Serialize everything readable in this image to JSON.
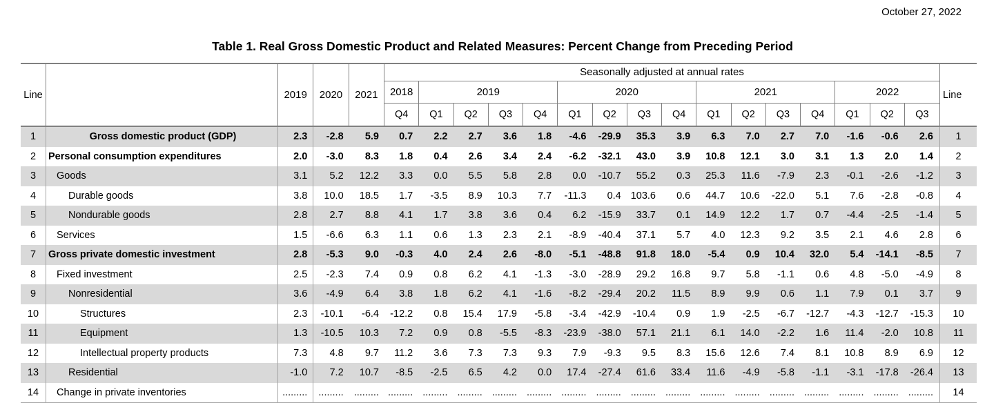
{
  "page": {
    "date": "October 27, 2022",
    "title": "Table 1. Real Gross Domestic Product and Related Measures: Percent Change from Preceding Period"
  },
  "table": {
    "line_header_left": "Line",
    "line_header_right": "Line",
    "seasonal_note": "Seasonally adjusted at annual rates",
    "annual_years": [
      "2019",
      "2020",
      "2021"
    ],
    "quarter_groups": [
      {
        "year": "2018",
        "quarters": [
          "Q4"
        ]
      },
      {
        "year": "2019",
        "quarters": [
          "Q1",
          "Q2",
          "Q3",
          "Q4"
        ]
      },
      {
        "year": "2020",
        "quarters": [
          "Q1",
          "Q2",
          "Q3",
          "Q4"
        ]
      },
      {
        "year": "2021",
        "quarters": [
          "Q1",
          "Q2",
          "Q3",
          "Q4"
        ]
      },
      {
        "year": "2022",
        "quarters": [
          "Q1",
          "Q2",
          "Q3"
        ]
      }
    ],
    "rows": [
      {
        "line": "1",
        "label": "Gross domestic product (GDP)",
        "bold": true,
        "center": true,
        "indent": 0,
        "annual": [
          "2.3",
          "-2.8",
          "5.9"
        ],
        "quarterly": [
          "0.7",
          "2.2",
          "2.7",
          "3.6",
          "1.8",
          "-4.6",
          "-29.9",
          "35.3",
          "3.9",
          "6.3",
          "7.0",
          "2.7",
          "7.0",
          "-1.6",
          "-0.6",
          "2.6"
        ]
      },
      {
        "line": "2",
        "label": "Personal consumption expenditures",
        "bold": true,
        "center": false,
        "indent": 0,
        "annual": [
          "2.0",
          "-3.0",
          "8.3"
        ],
        "quarterly": [
          "1.8",
          "0.4",
          "2.6",
          "3.4",
          "2.4",
          "-6.2",
          "-32.1",
          "43.0",
          "3.9",
          "10.8",
          "12.1",
          "3.0",
          "3.1",
          "1.3",
          "2.0",
          "1.4"
        ]
      },
      {
        "line": "3",
        "label": "Goods",
        "bold": false,
        "center": false,
        "indent": 1,
        "annual": [
          "3.1",
          "5.2",
          "12.2"
        ],
        "quarterly": [
          "3.3",
          "0.0",
          "5.5",
          "5.8",
          "2.8",
          "0.0",
          "-10.7",
          "55.2",
          "0.3",
          "25.3",
          "11.6",
          "-7.9",
          "2.3",
          "-0.1",
          "-2.6",
          "-1.2"
        ]
      },
      {
        "line": "4",
        "label": "Durable goods",
        "bold": false,
        "center": false,
        "indent": 2,
        "annual": [
          "3.8",
          "10.0",
          "18.5"
        ],
        "quarterly": [
          "1.7",
          "-3.5",
          "8.9",
          "10.3",
          "7.7",
          "-11.3",
          "0.4",
          "103.6",
          "0.6",
          "44.7",
          "10.6",
          "-22.0",
          "5.1",
          "7.6",
          "-2.8",
          "-0.8"
        ]
      },
      {
        "line": "5",
        "label": "Nondurable goods",
        "bold": false,
        "center": false,
        "indent": 2,
        "annual": [
          "2.8",
          "2.7",
          "8.8"
        ],
        "quarterly": [
          "4.1",
          "1.7",
          "3.8",
          "3.6",
          "0.4",
          "6.2",
          "-15.9",
          "33.7",
          "0.1",
          "14.9",
          "12.2",
          "1.7",
          "0.7",
          "-4.4",
          "-2.5",
          "-1.4"
        ]
      },
      {
        "line": "6",
        "label": "Services",
        "bold": false,
        "center": false,
        "indent": 1,
        "annual": [
          "1.5",
          "-6.6",
          "6.3"
        ],
        "quarterly": [
          "1.1",
          "0.6",
          "1.3",
          "2.3",
          "2.1",
          "-8.9",
          "-40.4",
          "37.1",
          "5.7",
          "4.0",
          "12.3",
          "9.2",
          "3.5",
          "2.1",
          "4.6",
          "2.8"
        ]
      },
      {
        "line": "7",
        "label": "Gross private domestic investment",
        "bold": true,
        "center": false,
        "indent": 0,
        "annual": [
          "2.8",
          "-5.3",
          "9.0"
        ],
        "quarterly": [
          "-0.3",
          "4.0",
          "2.4",
          "2.6",
          "-8.0",
          "-5.1",
          "-48.8",
          "91.8",
          "18.0",
          "-5.4",
          "0.9",
          "10.4",
          "32.0",
          "5.4",
          "-14.1",
          "-8.5"
        ]
      },
      {
        "line": "8",
        "label": "Fixed investment",
        "bold": false,
        "center": false,
        "indent": 1,
        "annual": [
          "2.5",
          "-2.3",
          "7.4"
        ],
        "quarterly": [
          "0.9",
          "0.8",
          "6.2",
          "4.1",
          "-1.3",
          "-3.0",
          "-28.9",
          "29.2",
          "16.8",
          "9.7",
          "5.8",
          "-1.1",
          "0.6",
          "4.8",
          "-5.0",
          "-4.9"
        ]
      },
      {
        "line": "9",
        "label": "Nonresidential",
        "bold": false,
        "center": false,
        "indent": 2,
        "annual": [
          "3.6",
          "-4.9",
          "6.4"
        ],
        "quarterly": [
          "3.8",
          "1.8",
          "6.2",
          "4.1",
          "-1.6",
          "-8.2",
          "-29.4",
          "20.2",
          "11.5",
          "8.9",
          "9.9",
          "0.6",
          "1.1",
          "7.9",
          "0.1",
          "3.7"
        ]
      },
      {
        "line": "10",
        "label": "Structures",
        "bold": false,
        "center": false,
        "indent": 3,
        "annual": [
          "2.3",
          "-10.1",
          "-6.4"
        ],
        "quarterly": [
          "-12.2",
          "0.8",
          "15.4",
          "17.9",
          "-5.8",
          "-3.4",
          "-42.9",
          "-10.4",
          "0.9",
          "1.9",
          "-2.5",
          "-6.7",
          "-12.7",
          "-4.3",
          "-12.7",
          "-15.3"
        ]
      },
      {
        "line": "11",
        "label": "Equipment",
        "bold": false,
        "center": false,
        "indent": 3,
        "annual": [
          "1.3",
          "-10.5",
          "10.3"
        ],
        "quarterly": [
          "7.2",
          "0.9",
          "0.8",
          "-5.5",
          "-8.3",
          "-23.9",
          "-38.0",
          "57.1",
          "21.1",
          "6.1",
          "14.0",
          "-2.2",
          "1.6",
          "11.4",
          "-2.0",
          "10.8"
        ]
      },
      {
        "line": "12",
        "label": "Intellectual property products",
        "bold": false,
        "center": false,
        "indent": 3,
        "annual": [
          "7.3",
          "4.8",
          "9.7"
        ],
        "quarterly": [
          "11.2",
          "3.6",
          "7.3",
          "7.3",
          "9.3",
          "7.9",
          "-9.3",
          "9.5",
          "8.3",
          "15.6",
          "12.6",
          "7.4",
          "8.1",
          "10.8",
          "8.9",
          "6.9"
        ]
      },
      {
        "line": "13",
        "label": "Residential",
        "bold": false,
        "center": false,
        "indent": 2,
        "annual": [
          "-1.0",
          "7.2",
          "10.7"
        ],
        "quarterly": [
          "-8.5",
          "-2.5",
          "6.5",
          "4.2",
          "0.0",
          "17.4",
          "-27.4",
          "61.6",
          "33.4",
          "11.6",
          "-4.9",
          "-5.8",
          "-1.1",
          "-3.1",
          "-17.8",
          "-26.4"
        ]
      },
      {
        "line": "14",
        "label": "Change in private inventories",
        "bold": false,
        "center": false,
        "indent": 1,
        "annual": [
          ".........",
          ".........",
          "........."
        ],
        "quarterly": [
          ".........",
          ".........",
          ".........",
          ".........",
          ".........",
          ".........",
          ".........",
          ".........",
          ".........",
          ".........",
          ".........",
          ".........",
          ".........",
          ".........",
          ".........",
          "........."
        ]
      }
    ]
  }
}
